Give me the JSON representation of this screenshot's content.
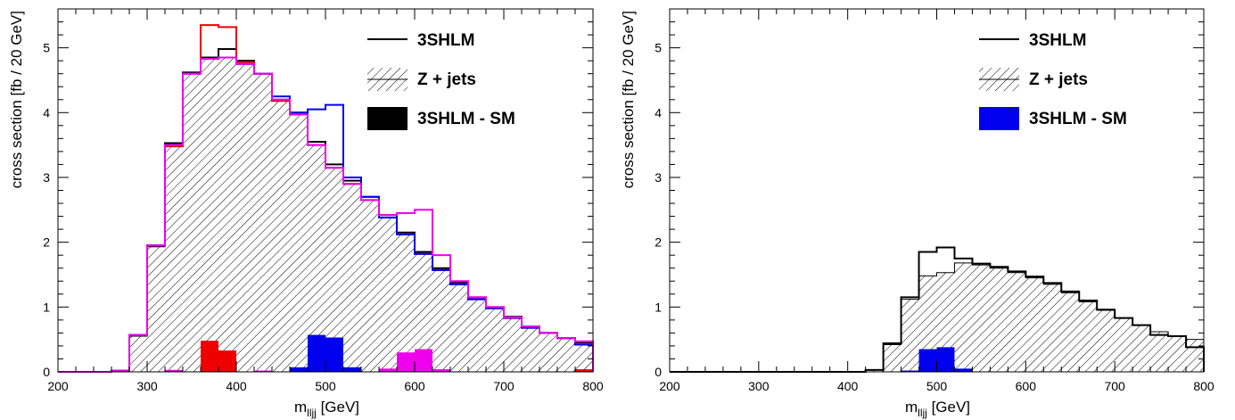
{
  "chart_data": [
    {
      "type": "histogram",
      "xlabel": "m",
      "xlabel_sub": "lljj",
      "xlabel_unit": " [GeV]",
      "ylabel": "cross section [fb / 20 GeV]",
      "xlim": [
        200,
        800
      ],
      "ylim": [
        0,
        5.6
      ],
      "bin_width": 20,
      "x_ticks": [
        "200",
        "300",
        "400",
        "500",
        "600",
        "700",
        "800"
      ],
      "y_ticks": [
        "0",
        "1",
        "2",
        "3",
        "4",
        "5"
      ],
      "legend": [
        {
          "label": "3SHLM",
          "style": "line",
          "color": "#000000"
        },
        {
          "label": "Z + jets",
          "style": "hatched",
          "color": "#000000"
        },
        {
          "label": "3SHLM - SM",
          "style": "filled",
          "color": "#000000"
        }
      ],
      "background": {
        "name": "Z + jets",
        "values": [
          0,
          0,
          0,
          0.02,
          0.55,
          1.93,
          3.5,
          4.6,
          4.83,
          4.85,
          4.75,
          4.6,
          4.2,
          3.97,
          3.5,
          3.15,
          2.9,
          2.65,
          2.38,
          2.12,
          1.82,
          1.57,
          1.35,
          1.12,
          0.98,
          0.83,
          0.68,
          0.6,
          0.52,
          0.42
        ]
      },
      "series": [
        {
          "name": "3SHLM",
          "color": "#000000",
          "values": [
            0,
            0,
            0,
            0.02,
            0.57,
            1.95,
            3.53,
            4.62,
            4.85,
            4.98,
            4.8,
            4.6,
            4.2,
            4.0,
            3.55,
            3.2,
            2.95,
            2.7,
            2.42,
            2.15,
            1.85,
            1.6,
            1.38,
            1.15,
            1.0,
            0.85,
            0.7,
            0.6,
            0.52,
            0.45
          ]
        },
        {
          "color": "#ee0000",
          "values": [
            0,
            0,
            0,
            0.02,
            0.57,
            1.95,
            3.48,
            4.6,
            5.35,
            5.32,
            4.78,
            4.6,
            4.18,
            3.97,
            3.5,
            3.15,
            2.9,
            2.65,
            2.38,
            2.12,
            1.82,
            1.57,
            1.35,
            1.12,
            0.98,
            0.83,
            0.68,
            0.6,
            0.52,
            0.47
          ]
        },
        {
          "color": "#0000ee",
          "values": [
            0,
            0,
            0,
            0.02,
            0.57,
            1.95,
            3.5,
            4.6,
            4.83,
            4.85,
            4.75,
            4.6,
            4.25,
            4.0,
            4.05,
            4.12,
            3.0,
            2.7,
            2.38,
            2.12,
            1.82,
            1.57,
            1.35,
            1.12,
            0.98,
            0.83,
            0.68,
            0.6,
            0.52,
            0.42
          ]
        },
        {
          "color": "#ee00ee",
          "values": [
            0,
            0,
            0,
            0.02,
            0.57,
            1.95,
            3.5,
            4.6,
            4.83,
            4.85,
            4.75,
            4.6,
            4.2,
            3.97,
            3.5,
            3.15,
            2.9,
            2.65,
            2.42,
            2.45,
            2.5,
            1.8,
            1.4,
            1.15,
            1.0,
            0.84,
            0.7,
            0.6,
            0.52,
            0.47
          ]
        }
      ],
      "difference": [
        {
          "color": "#ee0000",
          "values": [
            0,
            0,
            0,
            0,
            0,
            0,
            0,
            0,
            0.48,
            0.33,
            0,
            0,
            0,
            0,
            0,
            0,
            0,
            0,
            0,
            0,
            0,
            0,
            0,
            0,
            0,
            0,
            0,
            0,
            0,
            0.04
          ]
        },
        {
          "color": "#0000ee",
          "values": [
            0,
            0,
            0,
            0,
            0,
            0,
            0,
            0,
            0,
            0,
            0,
            0,
            0,
            0.07,
            0.57,
            0.53,
            0.07,
            0,
            0,
            0,
            0,
            0,
            0,
            0,
            0,
            0,
            0,
            0,
            0,
            0
          ]
        },
        {
          "color": "#ee00ee",
          "values": [
            0,
            0,
            0,
            0,
            0,
            0,
            0.03,
            0,
            0,
            0,
            0,
            0.02,
            0,
            0,
            0,
            0,
            0,
            0,
            0.05,
            0.3,
            0.35,
            0.04,
            0,
            0,
            0,
            0,
            0,
            0,
            0,
            0
          ]
        }
      ]
    },
    {
      "type": "histogram",
      "xlabel": "m",
      "xlabel_sub": "lljj",
      "xlabel_unit": " [GeV]",
      "ylabel": "cross section [fb / 20 GeV]",
      "xlim": [
        200,
        800
      ],
      "ylim": [
        0,
        5.6
      ],
      "bin_width": 20,
      "x_ticks": [
        "200",
        "300",
        "400",
        "500",
        "600",
        "700",
        "800"
      ],
      "y_ticks": [
        "0",
        "1",
        "2",
        "3",
        "4",
        "5"
      ],
      "legend": [
        {
          "label": "3SHLM",
          "style": "line",
          "color": "#000000"
        },
        {
          "label": "Z + jets",
          "style": "hatched",
          "color": "#000000"
        },
        {
          "label": "3SHLM - SM",
          "style": "filled",
          "color": "#0000ee"
        }
      ],
      "background": {
        "name": "Z + jets",
        "values": [
          0,
          0,
          0,
          0,
          0,
          0,
          0,
          0,
          0,
          0,
          0,
          0.03,
          0.42,
          1.12,
          1.48,
          1.53,
          1.68,
          1.65,
          1.6,
          1.53,
          1.45,
          1.35,
          1.22,
          1.08,
          0.95,
          0.83,
          0.72,
          0.62,
          0.55,
          0.5
        ]
      },
      "series": [
        {
          "name": "3SHLM",
          "color": "#000000",
          "values": [
            0,
            0,
            0,
            0,
            0,
            0,
            0,
            0,
            0,
            0,
            0,
            0.03,
            0.44,
            1.15,
            1.85,
            1.92,
            1.75,
            1.67,
            1.62,
            1.55,
            1.47,
            1.37,
            1.24,
            1.1,
            0.96,
            0.83,
            0.72,
            0.57,
            0.55,
            0.38
          ]
        }
      ],
      "difference": [
        {
          "color": "#0000ee",
          "values": [
            0,
            0,
            0,
            0,
            0,
            0,
            0,
            0,
            0,
            0,
            0,
            0,
            0,
            0.02,
            0.35,
            0.38,
            0.05,
            0,
            0,
            0,
            0,
            0,
            0,
            0,
            0,
            0,
            0,
            0,
            0,
            0
          ]
        }
      ]
    }
  ]
}
